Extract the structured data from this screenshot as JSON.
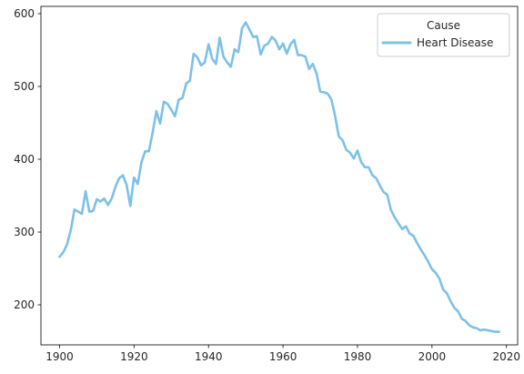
{
  "chart_data": {
    "type": "line",
    "title": "",
    "xlabel": "",
    "ylabel": "",
    "xlim": [
      1895,
      2023
    ],
    "ylim": [
      145,
      610
    ],
    "xticks": [
      1900,
      1920,
      1940,
      1960,
      1980,
      2000,
      2020
    ],
    "yticks": [
      200,
      300,
      400,
      500,
      600
    ],
    "grid": false,
    "legend": {
      "title": "Cause",
      "placement": "top-right"
    },
    "series": [
      {
        "name": "Heart Disease",
        "color": "#7dc0e8",
        "x": [
          1900,
          1901,
          1902,
          1903,
          1904,
          1905,
          1906,
          1907,
          1908,
          1909,
          1910,
          1911,
          1912,
          1913,
          1914,
          1915,
          1916,
          1917,
          1918,
          1919,
          1920,
          1921,
          1922,
          1923,
          1924,
          1925,
          1926,
          1927,
          1928,
          1929,
          1930,
          1931,
          1932,
          1933,
          1934,
          1935,
          1936,
          1937,
          1938,
          1939,
          1940,
          1941,
          1942,
          1943,
          1944,
          1945,
          1946,
          1947,
          1948,
          1949,
          1950,
          1951,
          1952,
          1953,
          1954,
          1955,
          1956,
          1957,
          1958,
          1959,
          1960,
          1961,
          1962,
          1963,
          1964,
          1965,
          1966,
          1967,
          1968,
          1969,
          1970,
          1971,
          1972,
          1973,
          1974,
          1975,
          1976,
          1977,
          1978,
          1979,
          1980,
          1981,
          1982,
          1983,
          1984,
          1985,
          1986,
          1987,
          1988,
          1989,
          1990,
          1991,
          1992,
          1993,
          1994,
          1995,
          1996,
          1997,
          1998,
          1999,
          2000,
          2001,
          2002,
          2003,
          2004,
          2005,
          2006,
          2007,
          2008,
          2009,
          2010,
          2011,
          2012,
          2013,
          2014,
          2015,
          2016,
          2017,
          2018
        ],
        "values": [
          266,
          272,
          283,
          302,
          331,
          328,
          325,
          356,
          328,
          329,
          345,
          342,
          346,
          337,
          346,
          362,
          374,
          378,
          365,
          336,
          375,
          366,
          396,
          411,
          411,
          437,
          466,
          449,
          479,
          476,
          468,
          459,
          482,
          484,
          504,
          508,
          545,
          540,
          529,
          533,
          558,
          538,
          531,
          567,
          541,
          533,
          527,
          551,
          547,
          580,
          588,
          578,
          568,
          569,
          544,
          556,
          559,
          568,
          563,
          551,
          559,
          545,
          558,
          564,
          543,
          543,
          541,
          524,
          531,
          518,
          493,
          492,
          490,
          482,
          459,
          431,
          426,
          413,
          409,
          401,
          412,
          396,
          389,
          389,
          378,
          374,
          364,
          355,
          351,
          330,
          320,
          312,
          304,
          308,
          298,
          295,
          285,
          276,
          268,
          259,
          249,
          244,
          236,
          221,
          216,
          205,
          196,
          191,
          181,
          178,
          172,
          169,
          168,
          165,
          166,
          165,
          164,
          163,
          163
        ]
      }
    ]
  }
}
